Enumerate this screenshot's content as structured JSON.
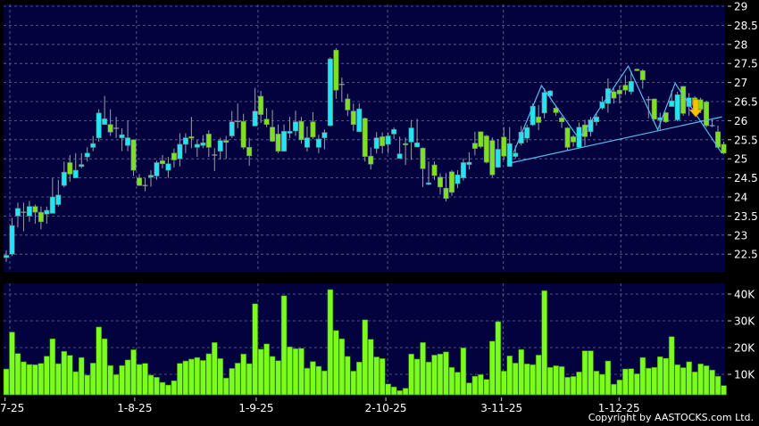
{
  "chart_data": [
    {
      "type": "candlestick",
      "ylim": [
        22.2,
        29.05
      ],
      "y_ticks": [
        "29",
        "28.5",
        "28",
        "27.5",
        "27",
        "26.5",
        "26",
        "25.5",
        "25",
        "24.5",
        "24",
        "23.5",
        "23",
        "22.5"
      ],
      "grid": true,
      "colors": {
        "up": "#22e4f4",
        "down": "#7ee01e",
        "unchanged": "#9aa0a8",
        "background": "#02023f",
        "pattern": "#5ab8ec",
        "signal_arrow": "#f5c400"
      },
      "ohlc_columns": [
        "open",
        "high",
        "low",
        "close"
      ],
      "candles": [
        [
          22.41,
          22.6,
          22.3,
          22.47
        ],
        [
          22.5,
          23.45,
          22.45,
          23.25
        ],
        [
          23.5,
          23.85,
          23.2,
          23.7
        ],
        [
          23.6,
          23.85,
          23.1,
          23.6
        ],
        [
          23.5,
          23.9,
          23.35,
          23.75
        ],
        [
          23.75,
          23.8,
          23.3,
          23.6
        ],
        [
          23.6,
          23.75,
          23.15,
          23.35
        ],
        [
          23.55,
          23.75,
          23.3,
          23.65
        ],
        [
          23.57,
          24.5,
          23.57,
          24.0
        ],
        [
          23.8,
          24.45,
          23.75,
          24.05
        ],
        [
          24.3,
          24.93,
          24.25,
          24.65
        ],
        [
          24.9,
          25.1,
          24.4,
          24.6
        ],
        [
          24.5,
          25.15,
          24.5,
          24.7
        ],
        [
          24.8,
          25.15,
          24.75,
          24.85
        ],
        [
          25.05,
          25.3,
          24.93,
          25.15
        ],
        [
          25.3,
          25.6,
          25.2,
          25.4
        ],
        [
          25.55,
          26.3,
          25.45,
          26.2
        ],
        [
          25.9,
          26.65,
          25.9,
          26.05
        ],
        [
          25.9,
          26.3,
          25.6,
          25.7
        ],
        [
          25.8,
          26.1,
          25.55,
          25.8
        ],
        [
          25.55,
          25.8,
          25.2,
          25.63
        ],
        [
          25.35,
          26.0,
          25.2,
          25.55
        ],
        [
          25.5,
          25.5,
          24.55,
          24.7
        ],
        [
          24.5,
          24.6,
          24.3,
          24.3
        ],
        [
          24.3,
          24.5,
          24.15,
          24.3
        ],
        [
          24.52,
          24.7,
          24.27,
          24.57
        ],
        [
          24.55,
          24.95,
          24.45,
          24.9
        ],
        [
          24.95,
          25.1,
          24.75,
          24.87
        ],
        [
          24.7,
          25.05,
          24.5,
          24.87
        ],
        [
          25.15,
          25.27,
          24.77,
          24.97
        ],
        [
          25.0,
          25.67,
          24.8,
          25.38
        ],
        [
          25.38,
          25.67,
          25.15,
          25.55
        ],
        [
          25.58,
          26.1,
          25.28,
          25.54
        ],
        [
          25.3,
          25.5,
          25.05,
          25.38
        ],
        [
          25.35,
          25.62,
          25.28,
          25.42
        ],
        [
          25.65,
          25.75,
          25.05,
          25.3
        ],
        [
          25.1,
          25.28,
          24.68,
          25.1
        ],
        [
          25.2,
          25.55,
          24.98,
          25.48
        ],
        [
          25.48,
          25.6,
          25.0,
          25.43
        ],
        [
          25.6,
          26.25,
          25.55,
          25.97
        ],
        [
          25.98,
          26.45,
          25.8,
          25.98
        ],
        [
          25.98,
          26.18,
          25.25,
          25.3
        ],
        [
          25.3,
          25.55,
          24.82,
          25.08
        ],
        [
          25.86,
          26.86,
          25.86,
          26.25
        ],
        [
          26.64,
          26.78,
          25.94,
          26.16
        ],
        [
          26.04,
          26.33,
          25.83,
          25.9
        ],
        [
          25.83,
          26.28,
          25.44,
          25.46
        ],
        [
          25.65,
          25.9,
          25.15,
          25.2
        ],
        [
          25.2,
          25.9,
          25.19,
          25.72
        ],
        [
          25.67,
          26.1,
          25.54,
          25.72
        ],
        [
          25.73,
          26.26,
          25.6,
          25.97
        ],
        [
          25.98,
          26.1,
          25.4,
          25.5
        ],
        [
          25.3,
          25.85,
          25.19,
          25.55
        ],
        [
          25.97,
          26.22,
          25.52,
          25.57
        ],
        [
          25.3,
          25.63,
          25.15,
          25.52
        ],
        [
          25.55,
          25.77,
          25.25,
          25.69
        ],
        [
          25.87,
          27.66,
          25.85,
          27.62
        ],
        [
          27.85,
          27.9,
          26.57,
          26.8
        ],
        [
          26.95,
          27.13,
          26.5,
          26.95
        ],
        [
          26.57,
          26.7,
          26.12,
          26.28
        ],
        [
          26.25,
          26.45,
          25.73,
          25.9
        ],
        [
          25.71,
          26.45,
          25.71,
          26.31
        ],
        [
          26.06,
          26.08,
          24.93,
          25.06
        ],
        [
          25.07,
          25.3,
          24.72,
          24.86
        ],
        [
          25.27,
          25.7,
          25.14,
          25.55
        ],
        [
          25.58,
          25.69,
          25.14,
          25.34
        ],
        [
          25.38,
          25.69,
          25.14,
          25.6
        ],
        [
          25.65,
          25.82,
          25.52,
          25.77
        ],
        [
          25.01,
          25.58,
          25.01,
          25.13
        ],
        [
          25.4,
          25.56,
          24.84,
          25.38
        ],
        [
          25.44,
          26.02,
          24.97,
          25.81
        ],
        [
          25.31,
          26.05,
          25.31,
          25.42
        ],
        [
          25.28,
          25.3,
          24.26,
          24.74
        ],
        [
          24.33,
          24.93,
          24.31,
          24.37
        ],
        [
          24.84,
          24.93,
          24.45,
          24.56
        ],
        [
          24.52,
          24.62,
          24.06,
          24.26
        ],
        [
          24.23,
          24.62,
          23.88,
          23.96
        ],
        [
          24.66,
          24.7,
          24.03,
          24.12
        ],
        [
          24.35,
          24.7,
          24.23,
          24.58
        ],
        [
          24.5,
          25.01,
          24.43,
          24.9
        ],
        [
          24.85,
          25.17,
          24.72,
          24.91
        ],
        [
          25.41,
          25.71,
          25.09,
          25.27
        ],
        [
          25.71,
          25.71,
          25.28,
          25.32
        ],
        [
          25.6,
          25.63,
          24.88,
          24.91
        ],
        [
          25.48,
          25.56,
          24.52,
          24.58
        ],
        [
          24.78,
          25.52,
          24.76,
          25.25
        ],
        [
          25.57,
          25.83,
          24.97,
          25.07
        ],
        [
          24.8,
          25.83,
          24.8,
          25.4
        ],
        [
          25.06,
          25.35,
          25.0,
          25.15
        ],
        [
          25.41,
          25.86,
          25.35,
          25.7
        ],
        [
          25.54,
          25.9,
          25.43,
          25.82
        ],
        [
          25.89,
          26.45,
          25.86,
          26.38
        ],
        [
          26.1,
          26.41,
          25.75,
          25.95
        ],
        [
          26.2,
          26.85,
          26.06,
          26.74
        ],
        [
          26.65,
          26.8,
          26.6,
          26.78
        ],
        [
          26.33,
          26.37,
          26.13,
          26.21
        ],
        [
          26.07,
          26.12,
          25.81,
          25.97
        ],
        [
          25.81,
          25.83,
          25.22,
          25.3
        ],
        [
          25.58,
          25.63,
          25.32,
          25.44
        ],
        [
          25.3,
          25.95,
          25.3,
          25.83
        ],
        [
          25.89,
          26.02,
          25.34,
          25.58
        ],
        [
          25.71,
          26.1,
          25.59,
          26.02
        ],
        [
          25.97,
          26.21,
          25.87,
          26.1
        ],
        [
          26.33,
          26.64,
          26.29,
          26.49
        ],
        [
          26.45,
          27.11,
          26.21,
          26.84
        ],
        [
          26.76,
          26.84,
          26.45,
          26.59
        ],
        [
          26.8,
          26.92,
          26.45,
          26.7
        ],
        [
          26.93,
          27.19,
          26.68,
          26.8
        ],
        [
          26.76,
          27.3,
          26.68,
          27.03
        ],
        [
          27.35,
          27.37,
          27.3,
          27.31
        ],
        [
          27.31,
          27.35,
          26.84,
          27.07
        ],
        [
          26.55,
          26.64,
          26.06,
          26.55
        ],
        [
          26.57,
          26.57,
          26.02,
          26.04
        ],
        [
          26.02,
          26.21,
          25.75,
          26.08
        ],
        [
          26.21,
          26.23,
          25.94,
          25.97
        ],
        [
          26.37,
          26.8,
          26.37,
          26.52
        ],
        [
          26.02,
          26.76,
          25.98,
          26.68
        ],
        [
          26.9,
          26.9,
          26.13,
          26.19
        ],
        [
          26.37,
          26.72,
          26.13,
          26.6
        ],
        [
          26.6,
          26.64,
          26.37,
          26.41
        ],
        [
          26.55,
          26.6,
          26.2,
          26.3
        ],
        [
          26.49,
          26.52,
          25.82,
          25.87
        ],
        [
          25.87,
          26.06,
          25.83,
          25.87
        ],
        [
          25.71,
          25.87,
          25.28,
          25.3
        ],
        [
          25.38,
          25.45,
          25.12,
          25.15
        ]
      ],
      "pattern_zigzag": [
        [
          87.7,
          25.17
        ],
        [
          92.5,
          26.92
        ],
        [
          99.0,
          25.52
        ],
        [
          107.5,
          27.43
        ],
        [
          112.6,
          25.76
        ],
        [
          115.6,
          26.98
        ],
        [
          123.7,
          25.14
        ]
      ],
      "pattern_neckline": [
        [
          87.4,
          24.9
        ],
        [
          123.7,
          26.1
        ]
      ],
      "signal_arrow": {
        "bar": 119,
        "direction": "down",
        "from": 26.55,
        "to": 26.1
      }
    },
    {
      "type": "bar",
      "ylim": [
        2.3,
        44
      ],
      "y_ticks": [
        "40K",
        "30K",
        "20K",
        "10K"
      ],
      "y_tick_values": [
        40,
        30,
        20,
        10
      ],
      "unit": "K",
      "color": "#7cfc1c",
      "values": [
        12.0,
        25.8,
        17.8,
        14.7,
        13.7,
        13.6,
        14.1,
        16.8,
        23.3,
        14.0,
        18.6,
        17.1,
        11.0,
        16.3,
        9.7,
        14.2,
        27.7,
        23.3,
        13.3,
        9.9,
        13.3,
        15.4,
        19.2,
        13.7,
        14.1,
        9.7,
        8.9,
        7.0,
        6.0,
        7.6,
        14.1,
        15.0,
        15.7,
        16.3,
        15.2,
        17.7,
        21.9,
        15.9,
        8.6,
        12.2,
        14.2,
        17.6,
        14.0,
        36.4,
        19.4,
        21.4,
        16.7,
        15.1,
        39.4,
        20.3,
        19.6,
        19.7,
        12.3,
        14.8,
        13.0,
        11.3,
        41.7,
        26.4,
        23.3,
        16.7,
        11.2,
        14.6,
        30.4,
        23.1,
        16.5,
        15.9,
        6.4,
        5.3,
        3.9,
        4.8,
        17.6,
        15.7,
        21.9,
        14.6,
        17.2,
        17.6,
        18.4,
        12.6,
        10.8,
        19.9,
        6.8,
        9.3,
        9.9,
        8.1,
        22.4,
        29.7,
        11.2,
        16.9,
        14.2,
        19.3,
        13.9,
        13.6,
        17.2,
        41.3,
        12.6,
        13.2,
        12.9,
        8.9,
        9.2,
        10.9,
        18.8,
        18.8,
        11.2,
        10.0,
        15.0,
        6.3,
        7.9,
        12.0,
        12.1,
        10.2,
        16.3,
        12.3,
        12.6,
        16.6,
        16.0,
        24.1,
        13.6,
        12.5,
        14.7,
        10.9,
        13.9,
        13.2,
        11.6,
        9.3,
        5.8
      ]
    }
  ],
  "x_axis": {
    "tick_labels": [
      "7-25",
      "1-8-25",
      "1-9-25",
      "2-10-25",
      "3-11-25",
      "1-12-25"
    ],
    "tick_bars": [
      -0.2,
      22.2,
      43.2,
      65.6,
      85.6,
      105.9
    ]
  },
  "footer": {
    "copyright": "Copyright by AASTOCKS.com Ltd."
  }
}
